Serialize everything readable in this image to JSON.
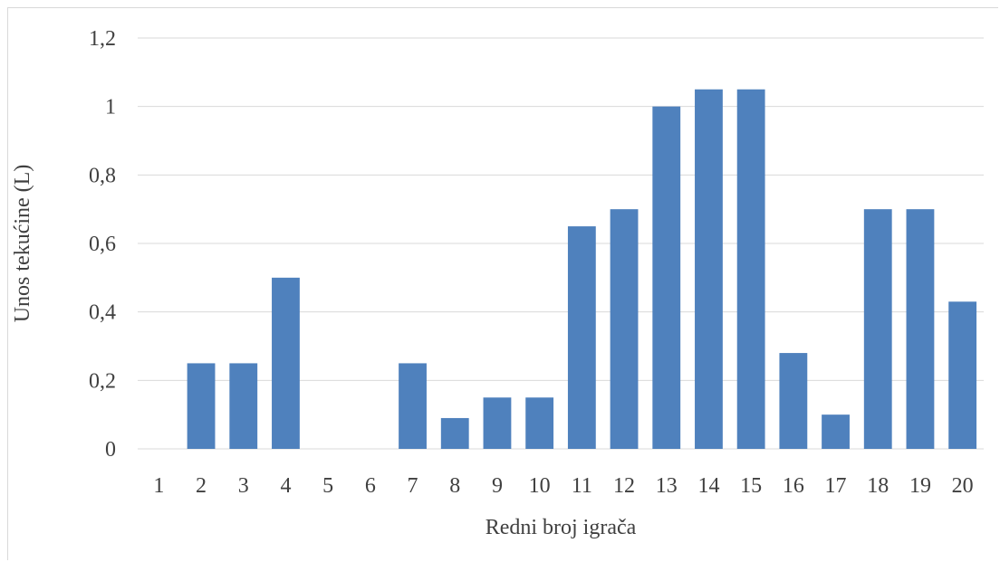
{
  "chart_data": {
    "type": "bar",
    "categories": [
      "1",
      "2",
      "3",
      "4",
      "5",
      "6",
      "7",
      "8",
      "9",
      "10",
      "11",
      "12",
      "13",
      "14",
      "15",
      "16",
      "17",
      "18",
      "19",
      "20"
    ],
    "values": [
      0,
      0.25,
      0.25,
      0.5,
      0,
      0,
      0.25,
      0.09,
      0.15,
      0.15,
      0.65,
      0.7,
      1.0,
      1.05,
      1.05,
      0.28,
      0.1,
      0.7,
      0.7,
      0.43
    ],
    "xlabel": "Redni broj igrača",
    "ylabel": "Unos tekućine (L)",
    "ylim": [
      0,
      1.2
    ],
    "yticks": [
      0,
      0.2,
      0.4,
      0.6,
      0.8,
      1,
      1.2
    ],
    "ytick_labels": [
      "0",
      "0,2",
      "0,4",
      "0,6",
      "0,8",
      "1",
      "1,2"
    ],
    "grid": true,
    "legend": "none",
    "bar_color": "#4f81bd",
    "grid_color": "#d9d9d9"
  }
}
